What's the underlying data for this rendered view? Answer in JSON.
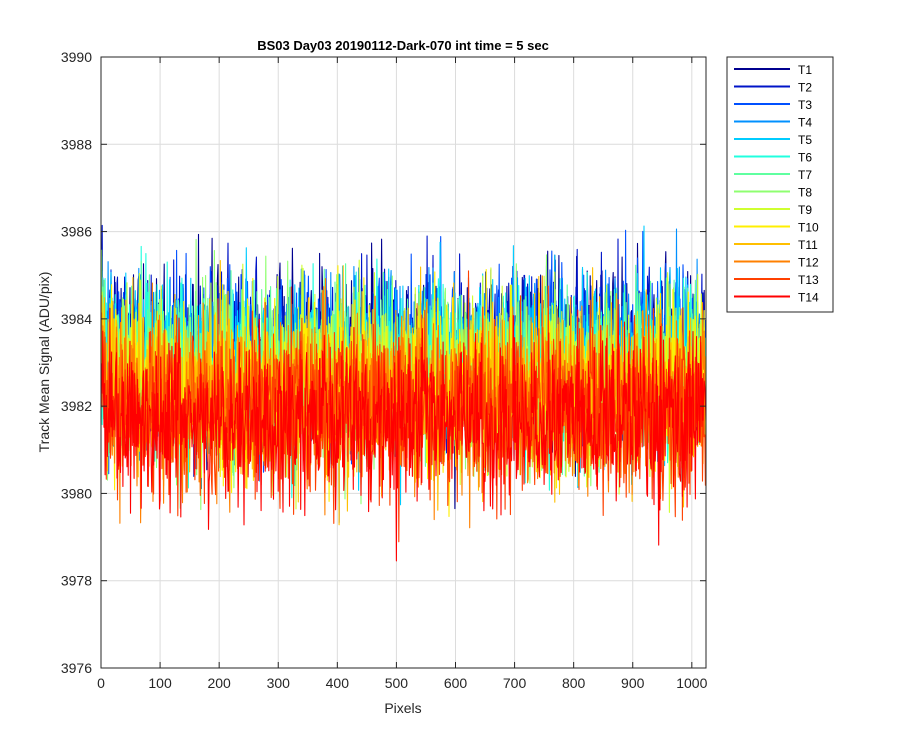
{
  "chart_data": {
    "type": "line",
    "title": "BS03 Day03 20190112-Dark-070 int time = 5 sec",
    "xlabel": "Pixels",
    "ylabel": "Track Mean Signal (ADU/pix)",
    "xlim": [
      0,
      1024
    ],
    "ylim": [
      3976,
      3990
    ],
    "xticks": [
      0,
      100,
      200,
      300,
      400,
      500,
      600,
      700,
      800,
      900,
      1000
    ],
    "yticks": [
      3976,
      3978,
      3980,
      3982,
      3984,
      3986,
      3988,
      3990
    ],
    "grid": true,
    "legend_location": "outside-right-top",
    "n_points": 1024,
    "series": [
      {
        "name": "T1",
        "color": "#00008f",
        "mean": 3983.3,
        "spread": 0.95
      },
      {
        "name": "T2",
        "color": "#0014c8",
        "mean": 3983.2,
        "spread": 0.95
      },
      {
        "name": "T3",
        "color": "#0050ff",
        "mean": 3983.1,
        "spread": 0.95
      },
      {
        "name": "T4",
        "color": "#0090ff",
        "mean": 3983.0,
        "spread": 0.95
      },
      {
        "name": "T5",
        "color": "#00ccff",
        "mean": 3982.9,
        "spread": 0.95
      },
      {
        "name": "T6",
        "color": "#20ffdf",
        "mean": 3982.8,
        "spread": 0.95
      },
      {
        "name": "T7",
        "color": "#5fffa0",
        "mean": 3982.7,
        "spread": 0.95
      },
      {
        "name": "T8",
        "color": "#8fff70",
        "mean": 3982.6,
        "spread": 0.95
      },
      {
        "name": "T9",
        "color": "#cfff30",
        "mean": 3982.5,
        "spread": 0.95
      },
      {
        "name": "T10",
        "color": "#ffef00",
        "mean": 3982.4,
        "spread": 0.95
      },
      {
        "name": "T11",
        "color": "#ffbf00",
        "mean": 3982.3,
        "spread": 0.95
      },
      {
        "name": "T12",
        "color": "#ff8000",
        "mean": 3982.1,
        "spread": 0.95
      },
      {
        "name": "T13",
        "color": "#ff4000",
        "mean": 3981.9,
        "spread": 0.95
      },
      {
        "name": "T14",
        "color": "#ff0000",
        "mean": 3981.7,
        "spread": 0.95
      }
    ]
  }
}
